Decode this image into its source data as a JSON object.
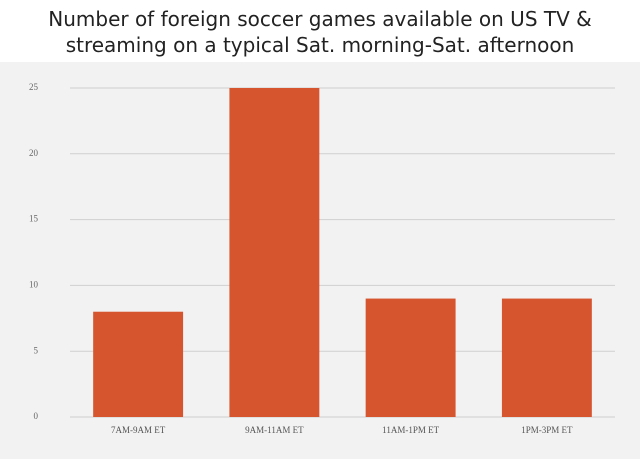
{
  "chart_data": {
    "type": "bar",
    "title": [
      "Number of foreign soccer games available on US TV &",
      "streaming on a typical Sat. morning-Sat. afternoon"
    ],
    "categories": [
      "7AM-9AM ET",
      "9AM-11AM ET",
      "11AM-1PM ET",
      "1PM-3PM ET"
    ],
    "values": [
      8,
      25,
      9,
      9
    ],
    "color": "#d6552e",
    "ylim": [
      0,
      25
    ],
    "yticks": [
      0,
      5,
      10,
      15,
      20,
      25
    ],
    "grid": true
  }
}
